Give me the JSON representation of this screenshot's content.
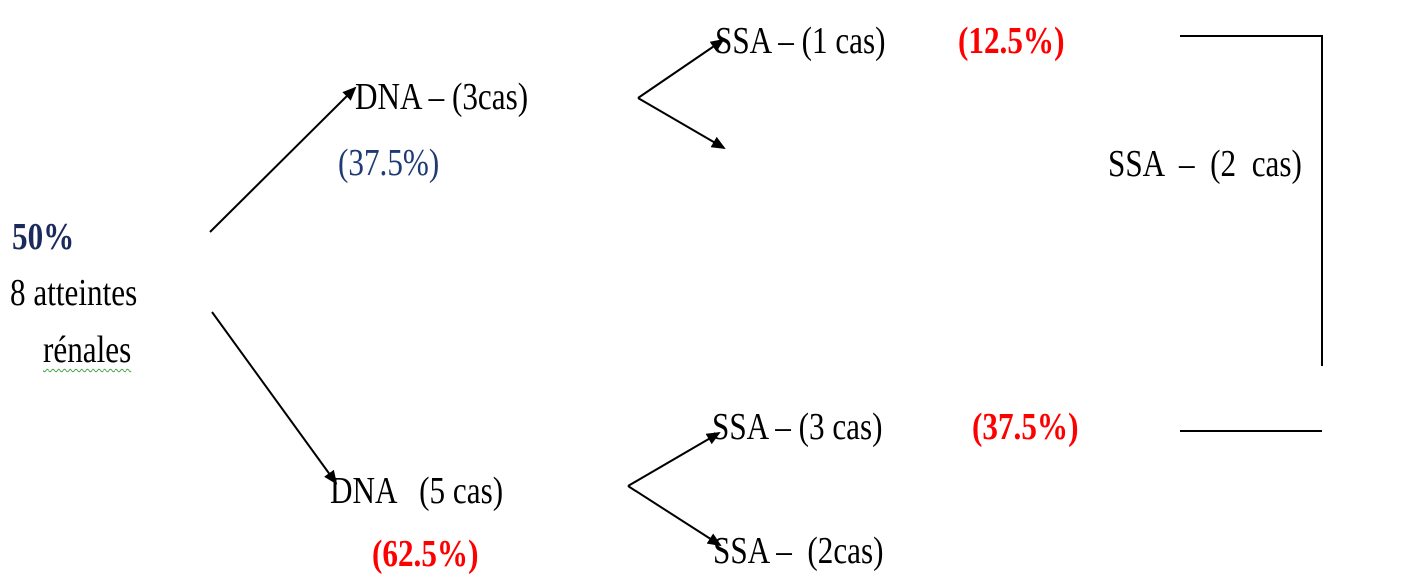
{
  "root": {
    "percent": "50%",
    "line1": "8 atteintes",
    "line2": "rénales"
  },
  "upper_branch": {
    "label": "DNA – (3cas)",
    "percent": "(37.5%)",
    "outcome_label": "SSA – (1 cas)",
    "outcome_percent": "(12.5%)"
  },
  "lower_branch": {
    "label": "DNA   (5 cas)",
    "percent": "(62.5%)",
    "outcome1_label": "SSA – (3 cas)",
    "outcome1_percent": "(37.5%)",
    "outcome2_label": "SSA –  (2cas)"
  },
  "summary": {
    "label": "SSA  –  (2  cas)"
  },
  "colors": {
    "red": "#ff0000",
    "blue": "#1f3b73",
    "underline": "#3aa13a"
  }
}
